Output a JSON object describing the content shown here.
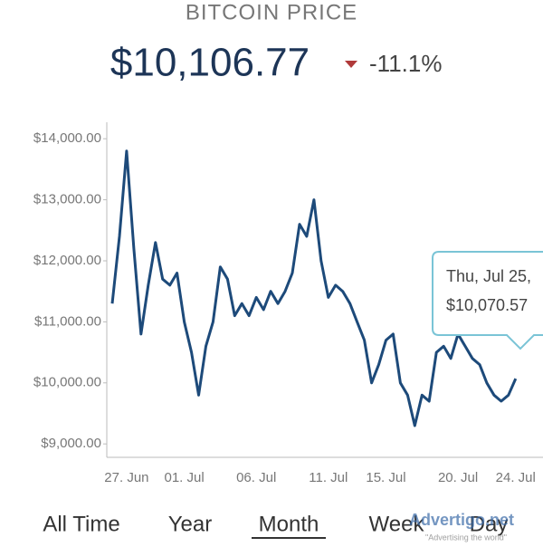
{
  "chart_data": {
    "type": "line",
    "title": "BITCOIN PRICE",
    "price": "$10,106.77",
    "change": "-11.1%",
    "categories": [
      null,
      null,
      "27. Jun",
      null,
      null,
      null,
      null,
      null,
      null,
      null,
      "01. Jul",
      null,
      null,
      null,
      null,
      null,
      null,
      null,
      null,
      null,
      "06. Jul",
      null,
      null,
      null,
      null,
      null,
      null,
      null,
      null,
      null,
      "11. Jul",
      null,
      null,
      null,
      null,
      null,
      null,
      null,
      "15. Jul",
      null,
      null,
      null,
      null,
      null,
      null,
      null,
      null,
      null,
      "20. Jul",
      null,
      null,
      null,
      null,
      null,
      null,
      null,
      "24. Jul"
    ],
    "series": [
      {
        "color": "#1d4a7a",
        "values": [
          11300,
          12400,
          13800,
          12200,
          10800,
          11600,
          12300,
          11700,
          11600,
          11800,
          11000,
          10500,
          9800,
          10600,
          11000,
          11900,
          11700,
          11100,
          11300,
          11100,
          11400,
          11200,
          11500,
          11300,
          11500,
          11800,
          12600,
          12400,
          13000,
          12000,
          11400,
          11600,
          11500,
          11300,
          11000,
          10700,
          10000,
          10300,
          10700,
          10800,
          10000,
          9800,
          9300,
          9800,
          9700,
          10500,
          10600,
          10400,
          10800,
          10600,
          10400,
          10300,
          10000,
          9800,
          9700,
          9800,
          10070
        ]
      }
    ],
    "ylim": [
      8780,
      14270
    ],
    "yticks": [
      {
        "value": 9000,
        "label": "$9,000.00"
      },
      {
        "value": 10000,
        "label": "$10,000.00"
      },
      {
        "value": 11000,
        "label": "$11,000.00"
      },
      {
        "value": 12000,
        "label": "$12,000.00"
      },
      {
        "value": 13000,
        "label": "$13,000.00"
      },
      {
        "value": 14000,
        "label": "$14,000.00"
      }
    ],
    "tooltip": {
      "date": "Thu, Jul 25,",
      "price": "$10,070.57"
    },
    "tabs": [
      "All Time",
      "Year",
      "Month",
      "Week",
      "Day"
    ],
    "selected_tab": "Month",
    "watermark": {
      "brand": "Advertigo.net",
      "slogan": "\"Advertising the world\""
    }
  }
}
